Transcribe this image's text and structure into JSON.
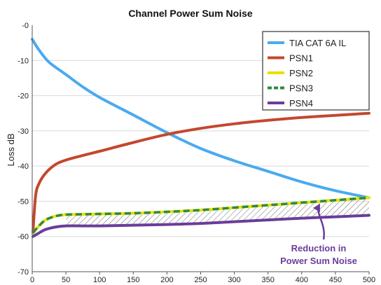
{
  "chart_data": {
    "type": "line",
    "title": "Channel Power Sum Noise",
    "xlabel": "",
    "ylabel": "Loss dB",
    "xlim": [
      0,
      500
    ],
    "ylim": [
      -70,
      0
    ],
    "x_ticks": [
      "0",
      "50",
      "100",
      "150",
      "200",
      "250",
      "300",
      "350",
      "400",
      "450",
      "500"
    ],
    "y_ticks": [
      "-0",
      "-10",
      "-20",
      "-30",
      "-40",
      "-50",
      "-60",
      "-70"
    ],
    "grid": "horizontal",
    "legend_position": "top-right",
    "series": [
      {
        "name": "TIA CAT 6A IL",
        "color": "#4aaaf0",
        "dash": false,
        "x": [
          0,
          10,
          25,
          50,
          75,
          100,
          150,
          200,
          250,
          300,
          350,
          400,
          450,
          500
        ],
        "y": [
          -4,
          -7,
          -10.5,
          -14,
          -17.5,
          -20.5,
          -25.5,
          -30.5,
          -35,
          -38.5,
          -41.5,
          -44.5,
          -47,
          -49
        ]
      },
      {
        "name": "PSN1",
        "color": "#c4472e",
        "dash": false,
        "x": [
          1,
          5,
          10,
          20,
          35,
          50,
          75,
          100,
          150,
          200,
          250,
          300,
          350,
          400,
          450,
          500
        ],
        "y": [
          -59,
          -48.5,
          -45,
          -42,
          -39.5,
          -38.3,
          -37,
          -35.8,
          -33.3,
          -31,
          -29.3,
          -28,
          -27,
          -26.2,
          -25.6,
          -25
        ]
      },
      {
        "name": "PSN2",
        "color": "#e8e000",
        "dash": false,
        "x": [
          1,
          10,
          20,
          35,
          50,
          75,
          100,
          150,
          200,
          250,
          300,
          350,
          400,
          450,
          500
        ],
        "y": [
          -59,
          -57,
          -55.3,
          -54.2,
          -53.8,
          -53.7,
          -53.6,
          -53.4,
          -53,
          -52.5,
          -51.8,
          -51.1,
          -50.4,
          -49.7,
          -49
        ]
      },
      {
        "name": "PSN3",
        "color": "#2e8b3e",
        "dash": true,
        "x": [
          1,
          10,
          20,
          35,
          50,
          75,
          100,
          150,
          200,
          250,
          300,
          350,
          400,
          450,
          500
        ],
        "y": [
          -59,
          -57,
          -55.3,
          -54.2,
          -53.8,
          -53.7,
          -53.6,
          -53.4,
          -53,
          -52.5,
          -51.8,
          -51.1,
          -50.4,
          -49.7,
          -49
        ]
      },
      {
        "name": "PSN4",
        "color": "#6a3d9a",
        "dash": false,
        "x": [
          1,
          10,
          20,
          35,
          50,
          75,
          100,
          150,
          200,
          250,
          300,
          350,
          400,
          450,
          500
        ],
        "y": [
          -60,
          -59,
          -58,
          -57.3,
          -57,
          -57,
          -57,
          -56.8,
          -56.6,
          -56.3,
          -55.8,
          -55.3,
          -54.8,
          -54.4,
          -54
        ]
      }
    ],
    "annotation": {
      "lines": [
        "Reduction in",
        "Power Sum Noise"
      ],
      "color": "#6a3d9a",
      "hatch_between": [
        "PSN2",
        "PSN4"
      ],
      "hatch_from_x": 50,
      "arrow_target": [
        450,
        -51.5
      ]
    }
  }
}
